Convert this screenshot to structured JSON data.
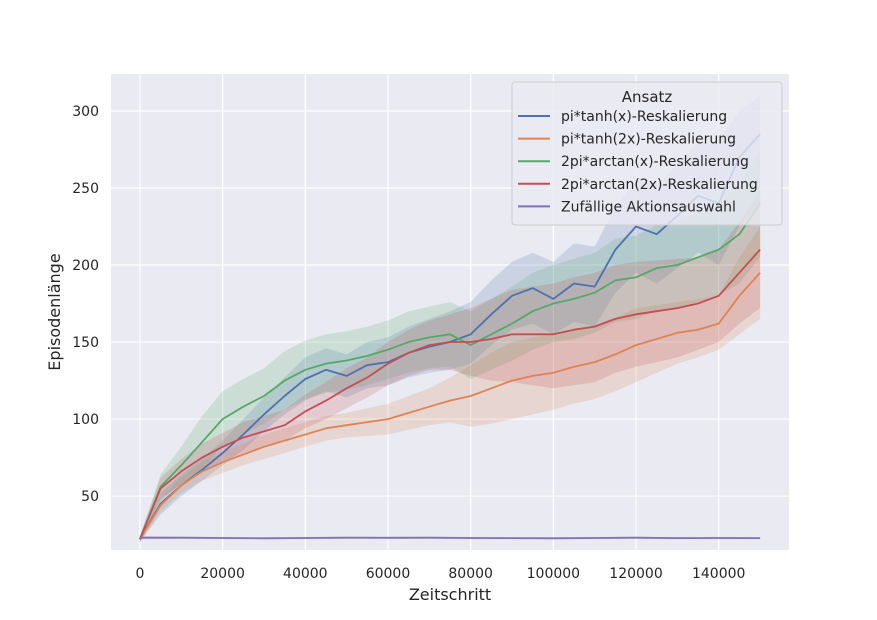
{
  "chart_data": {
    "type": "line",
    "title": "",
    "xlabel": "Zeitschritt",
    "ylabel": "Episodenlänge",
    "xlim": [
      -7000,
      157000
    ],
    "ylim": [
      15,
      324
    ],
    "xticks": [
      0,
      20000,
      40000,
      60000,
      80000,
      100000,
      120000,
      140000
    ],
    "yticks": [
      50,
      100,
      150,
      200,
      250,
      300
    ],
    "grid": true,
    "legend": {
      "title": "Ansatz",
      "placement": "top-right"
    },
    "series": [
      {
        "name": "pi*tanh(x)-Reskalierung",
        "color": "#4c72b0",
        "x": [
          0,
          5000,
          10000,
          15000,
          20000,
          25000,
          30000,
          35000,
          40000,
          45000,
          50000,
          55000,
          60000,
          65000,
          70000,
          75000,
          80000,
          85000,
          90000,
          95000,
          100000,
          105000,
          110000,
          115000,
          120000,
          125000,
          130000,
          135000,
          140000,
          145000,
          150000
        ],
        "y": [
          22,
          45,
          57,
          67,
          78,
          90,
          103,
          115,
          126,
          132,
          128,
          135,
          137,
          143,
          147,
          150,
          155,
          168,
          180,
          185,
          178,
          188,
          186,
          210,
          225,
          220,
          232,
          245,
          240,
          270,
          285
        ],
        "lower": [
          20,
          38,
          50,
          60,
          70,
          80,
          92,
          103,
          112,
          118,
          114,
          120,
          122,
          127,
          130,
          132,
          136,
          148,
          158,
          162,
          155,
          163,
          160,
          182,
          195,
          188,
          198,
          208,
          200,
          225,
          240
        ],
        "upper": [
          24,
          52,
          64,
          74,
          86,
          100,
          114,
          127,
          140,
          146,
          142,
          150,
          153,
          160,
          165,
          170,
          176,
          190,
          202,
          208,
          202,
          214,
          212,
          238,
          255,
          252,
          265,
          280,
          280,
          300,
          310
        ]
      },
      {
        "name": "pi*tanh(2x)-Reskalierung",
        "color": "#dd8452",
        "x": [
          0,
          5000,
          10000,
          15000,
          20000,
          25000,
          30000,
          35000,
          40000,
          45000,
          50000,
          55000,
          60000,
          65000,
          70000,
          75000,
          80000,
          85000,
          90000,
          95000,
          100000,
          105000,
          110000,
          115000,
          120000,
          125000,
          130000,
          135000,
          140000,
          145000,
          150000
        ],
        "y": [
          22,
          44,
          57,
          66,
          72,
          77,
          82,
          86,
          90,
          94,
          96,
          98,
          100,
          104,
          108,
          112,
          115,
          120,
          125,
          128,
          130,
          134,
          137,
          142,
          148,
          152,
          156,
          158,
          162,
          180,
          195
        ],
        "lower": [
          20,
          40,
          52,
          60,
          65,
          70,
          74,
          78,
          82,
          86,
          88,
          89,
          90,
          93,
          96,
          98,
          95,
          97,
          100,
          103,
          106,
          110,
          113,
          118,
          124,
          130,
          136,
          140,
          145,
          155,
          165
        ],
        "upper": [
          24,
          48,
          62,
          72,
          79,
          84,
          90,
          94,
          98,
          102,
          104,
          107,
          110,
          115,
          120,
          127,
          135,
          143,
          150,
          153,
          155,
          158,
          161,
          166,
          172,
          174,
          176,
          178,
          180,
          205,
          225
        ]
      },
      {
        "name": "2pi*arctan(x)-Reskalierung",
        "color": "#55a868",
        "x": [
          0,
          5000,
          10000,
          15000,
          20000,
          25000,
          30000,
          35000,
          40000,
          45000,
          50000,
          55000,
          60000,
          65000,
          70000,
          75000,
          80000,
          85000,
          90000,
          95000,
          100000,
          105000,
          110000,
          115000,
          120000,
          125000,
          130000,
          135000,
          140000,
          145000,
          150000
        ],
        "y": [
          22,
          56,
          70,
          85,
          100,
          108,
          115,
          125,
          132,
          136,
          138,
          141,
          145,
          150,
          153,
          155,
          148,
          155,
          162,
          170,
          175,
          178,
          182,
          190,
          192,
          198,
          200,
          205,
          210,
          220,
          240
        ],
        "lower": [
          20,
          48,
          58,
          68,
          82,
          90,
          97,
          106,
          113,
          117,
          119,
          122,
          126,
          130,
          133,
          134,
          126,
          132,
          138,
          145,
          150,
          152,
          156,
          163,
          165,
          170,
          172,
          176,
          180,
          188,
          205
        ],
        "upper": [
          24,
          64,
          82,
          102,
          118,
          126,
          133,
          144,
          151,
          155,
          157,
          160,
          164,
          170,
          173,
          176,
          170,
          178,
          186,
          195,
          200,
          204,
          208,
          217,
          219,
          226,
          228,
          234,
          240,
          252,
          275
        ]
      },
      {
        "name": "2pi*arctan(2x)-Reskalierung",
        "color": "#c44e52",
        "x": [
          0,
          5000,
          10000,
          15000,
          20000,
          25000,
          30000,
          35000,
          40000,
          45000,
          50000,
          55000,
          60000,
          65000,
          70000,
          75000,
          80000,
          85000,
          90000,
          95000,
          100000,
          105000,
          110000,
          115000,
          120000,
          125000,
          130000,
          135000,
          140000,
          145000,
          150000
        ],
        "y": [
          22,
          55,
          66,
          75,
          82,
          88,
          92,
          96,
          105,
          112,
          120,
          127,
          136,
          143,
          148,
          150,
          150,
          152,
          155,
          155,
          155,
          158,
          160,
          165,
          168,
          170,
          172,
          175,
          180,
          195,
          210
        ],
        "lower": [
          20,
          48,
          58,
          66,
          73,
          78,
          82,
          86,
          94,
          100,
          107,
          114,
          122,
          128,
          132,
          132,
          128,
          125,
          124,
          122,
          120,
          122,
          124,
          130,
          134,
          137,
          140,
          145,
          150,
          162,
          172
        ],
        "upper": [
          24,
          62,
          74,
          84,
          91,
          98,
          102,
          106,
          116,
          124,
          133,
          140,
          150,
          158,
          164,
          168,
          172,
          178,
          184,
          186,
          188,
          192,
          195,
          200,
          202,
          203,
          204,
          205,
          210,
          228,
          248
        ]
      },
      {
        "name": "Zufällige Aktionsauswahl",
        "color": "#8172b3",
        "x": [
          0,
          10000,
          20000,
          30000,
          40000,
          50000,
          60000,
          70000,
          80000,
          90000,
          100000,
          110000,
          120000,
          130000,
          140000,
          150000
        ],
        "y": [
          23,
          23,
          22.8,
          22.6,
          22.8,
          23,
          22.9,
          23,
          22.8,
          22.7,
          22.6,
          22.8,
          23,
          22.7,
          22.8,
          22.7
        ],
        "lower": [
          22,
          22.3,
          22.1,
          22,
          22.1,
          22.3,
          22.2,
          22.3,
          22.1,
          22,
          22,
          22.1,
          22.3,
          22,
          22.1,
          22
        ],
        "upper": [
          24,
          23.7,
          23.5,
          23.3,
          23.5,
          23.7,
          23.6,
          23.7,
          23.5,
          23.4,
          23.3,
          23.5,
          23.7,
          23.4,
          23.5,
          23.4
        ]
      }
    ]
  }
}
